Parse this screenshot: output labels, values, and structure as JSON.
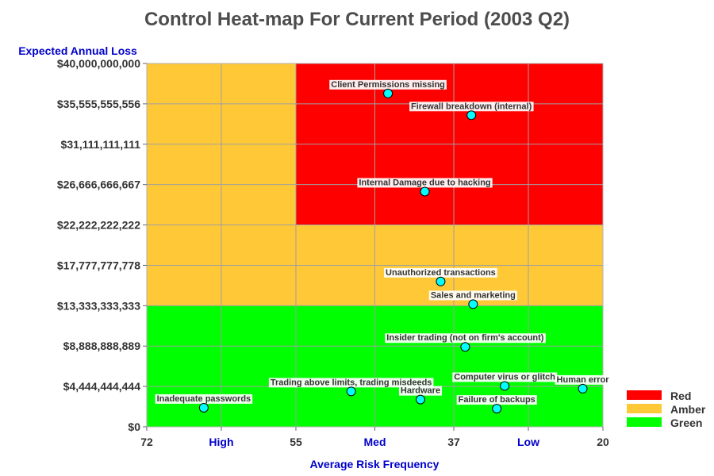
{
  "chart_data": {
    "type": "scatter",
    "title": "Control Heat-map For Current Period (2003 Q2)",
    "xlabel": "Average Risk Frequency",
    "ylabel": "Expected Annual Loss",
    "xlim": [
      72,
      20
    ],
    "ylim": [
      0,
      40000000000
    ],
    "x_reversed": true,
    "grid": true,
    "legend_placement": "bottom-right",
    "x_ticks": [
      {
        "value": 72,
        "label": "72",
        "color": "#333333"
      },
      {
        "value": 63.5,
        "label": "High",
        "color": "#0000cc"
      },
      {
        "value": 55,
        "label": "55",
        "color": "#333333"
      },
      {
        "value": 46,
        "label": "Med",
        "color": "#0000cc"
      },
      {
        "value": 37,
        "label": "37",
        "color": "#333333"
      },
      {
        "value": 28.5,
        "label": "Low",
        "color": "#0000cc"
      },
      {
        "value": 20,
        "label": "20",
        "color": "#333333"
      }
    ],
    "y_ticks": [
      {
        "value": 0,
        "label": "$0"
      },
      {
        "value": 4444444444,
        "label": "$4,444,444,444"
      },
      {
        "value": 8888888889,
        "label": "$8,888,888,889"
      },
      {
        "value": 13333333333,
        "label": "$13,333,333,333"
      },
      {
        "value": 17777777778,
        "label": "$17,777,777,778"
      },
      {
        "value": 22222222222,
        "label": "$22,222,222,222"
      },
      {
        "value": 26666666667,
        "label": "$26,666,666,667"
      },
      {
        "value": 31111111111,
        "label": "$31,111,111,111"
      },
      {
        "value": 35555555556,
        "label": "$35,555,555,556"
      },
      {
        "value": 40000000000,
        "label": "$40,000,000,000"
      }
    ],
    "zones": [
      {
        "name": "Amber",
        "x": [
          72,
          20
        ],
        "y": [
          0,
          40000000000
        ],
        "color": "#ffc837"
      },
      {
        "name": "Red",
        "x": [
          55,
          20
        ],
        "y": [
          22222222222,
          40000000000
        ],
        "color": "#ff0000"
      },
      {
        "name": "Green",
        "x": [
          72,
          20
        ],
        "y": [
          0,
          13333333333
        ],
        "color": "#00ff00"
      }
    ],
    "legend": [
      {
        "name": "Red",
        "color": "#ff0000"
      },
      {
        "name": "Amber",
        "color": "#ffc837"
      },
      {
        "name": "Green",
        "color": "#00ff00"
      }
    ],
    "point_color": "#00ffff",
    "points": [
      {
        "label": "Client Permissions missing",
        "x": 44.5,
        "y": 36700000000
      },
      {
        "label": "Firewall breakdown (internal)",
        "x": 35,
        "y": 34300000000
      },
      {
        "label": "Internal Damage due to hacking",
        "x": 40.3,
        "y": 25900000000
      },
      {
        "label": "Unauthorized transactions",
        "x": 38.5,
        "y": 16000000000
      },
      {
        "label": "Sales and marketing",
        "x": 34.8,
        "y": 13500000000
      },
      {
        "label": "Insider trading (not on firm's account)",
        "x": 35.7,
        "y": 8800000000
      },
      {
        "label": "Computer virus or glitch",
        "x": 31.2,
        "y": 4500000000
      },
      {
        "label": "Human error",
        "x": 22.3,
        "y": 4200000000
      },
      {
        "label": "Trading above limits, trading misdeeds",
        "x": 48.7,
        "y": 3900000000
      },
      {
        "label": "Hardware",
        "x": 40.8,
        "y": 3000000000
      },
      {
        "label": "Failure of backups",
        "x": 32.1,
        "y": 2000000000
      },
      {
        "label": "Inadequate passwords",
        "x": 65.5,
        "y": 2100000000
      }
    ]
  }
}
